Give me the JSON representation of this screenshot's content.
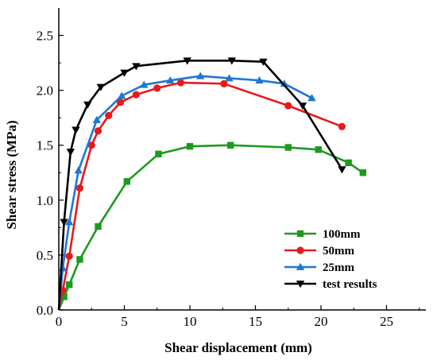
{
  "chart_data": {
    "type": "line",
    "xlabel": "Shear displacement (mm)",
    "ylabel": "Shear stress (MPa)",
    "xlim": [
      0,
      28
    ],
    "ylim": [
      0,
      2.75
    ],
    "xticks": [
      0,
      5,
      10,
      15,
      20,
      25
    ],
    "yticks": [
      0.0,
      0.5,
      1.0,
      1.5,
      2.0,
      2.5
    ],
    "xtick_labels": [
      "0",
      "5",
      "10",
      "15",
      "20",
      "25"
    ],
    "ytick_labels": [
      "0.0",
      "0.5",
      "1.0",
      "1.5",
      "2.0",
      "2.5"
    ],
    "grid": false,
    "legend_position": "bottom-right",
    "series": [
      {
        "name": "100mm",
        "color": "#1e9a1e",
        "marker": "square",
        "x": [
          0,
          0.4,
          0.8,
          1.6,
          3.0,
          5.2,
          7.6,
          10.0,
          13.1,
          17.5,
          19.8,
          22.1,
          23.2
        ],
        "y": [
          0,
          0.12,
          0.23,
          0.46,
          0.76,
          1.17,
          1.42,
          1.49,
          1.5,
          1.48,
          1.46,
          1.34,
          1.25
        ]
      },
      {
        "name": "50mm",
        "color": "#e8191b",
        "marker": "circle",
        "x": [
          0,
          0.3,
          0.8,
          1.6,
          2.5,
          3.0,
          3.8,
          4.7,
          5.9,
          7.5,
          9.3,
          12.6,
          17.5,
          21.6
        ],
        "y": [
          0,
          0.18,
          0.49,
          1.11,
          1.5,
          1.63,
          1.77,
          1.89,
          1.96,
          2.02,
          2.07,
          2.06,
          1.86,
          1.67
        ]
      },
      {
        "name": "25mm",
        "color": "#1f77d0",
        "marker": "triangle-up",
        "x": [
          0,
          0.3,
          0.8,
          1.5,
          2.9,
          4.8,
          6.5,
          8.5,
          10.8,
          13.0,
          15.3,
          17.2,
          19.3
        ],
        "y": [
          0,
          0.38,
          0.8,
          1.27,
          1.73,
          1.95,
          2.05,
          2.09,
          2.13,
          2.11,
          2.09,
          2.06,
          1.93
        ]
      },
      {
        "name": "test results",
        "color": "#000000",
        "marker": "triangle-down",
        "x": [
          0,
          0.4,
          0.9,
          1.3,
          2.2,
          3.2,
          5.0,
          5.9,
          9.8,
          13.2,
          15.6,
          18.6,
          21.6
        ],
        "y": [
          0,
          0.8,
          1.44,
          1.64,
          1.87,
          2.03,
          2.16,
          2.22,
          2.27,
          2.27,
          2.26,
          1.86,
          1.28
        ]
      }
    ]
  }
}
